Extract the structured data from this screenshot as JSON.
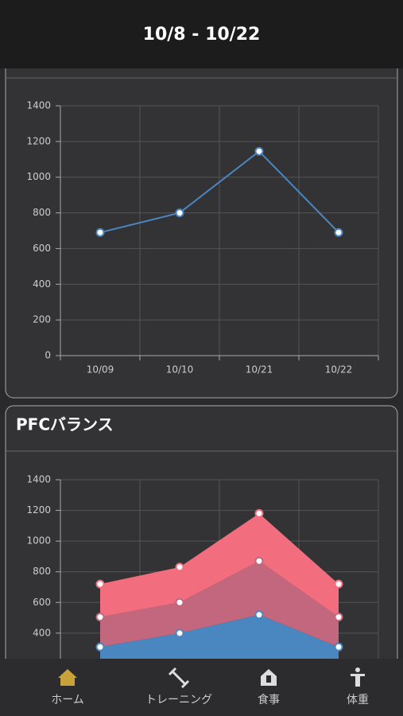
{
  "header": {
    "title": "10/8 - 10/22"
  },
  "chart_data": [
    {
      "type": "line",
      "categories": [
        "10/09",
        "10/10",
        "10/21",
        "10/22"
      ],
      "values": [
        690,
        800,
        1145,
        690
      ],
      "color": "#4a86c0",
      "ylim": [
        0,
        1400
      ],
      "yticks": [
        0,
        200,
        400,
        600,
        800,
        1000,
        1200,
        1400
      ],
      "grid": true
    },
    {
      "type": "stacked-area",
      "title": "PFCバランス",
      "series": [
        {
          "color": "#4a86c0",
          "values": [
            310,
            400,
            520,
            310
          ]
        },
        {
          "color": "#c2677e",
          "values": [
            195,
            200,
            350,
            195
          ]
        },
        {
          "color": "#f26e7e",
          "values": [
            215,
            230,
            310,
            215
          ]
        }
      ],
      "ylim": [
        0,
        1400
      ],
      "yticks": [
        400,
        600,
        800,
        1000,
        1200,
        1400
      ],
      "grid": true
    }
  ],
  "tab_bar": {
    "items": [
      "ホーム",
      "トレーニング",
      "食事",
      "体重"
    ],
    "active": 0,
    "active_color": "#c9a23a"
  }
}
